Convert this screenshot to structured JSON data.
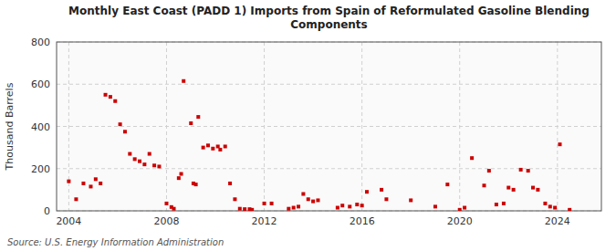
{
  "chart_data": {
    "type": "scatter",
    "title": "Monthly East Coast (PADD 1) Imports from Spain of Reformulated Gasoline Blending\nComponents",
    "ylabel": "Thousand Barrels",
    "source": "Source: U.S. Energy Information Administration",
    "xlim": [
      2003.5,
      2025.8
    ],
    "ylim": [
      0,
      800
    ],
    "xticks": [
      2004,
      2008,
      2012,
      2016,
      2020,
      2024
    ],
    "yticks": [
      0,
      200,
      400,
      600,
      800
    ],
    "color": "#cc0000",
    "marker": "square",
    "grid": true,
    "x": [
      2004.0,
      2004.3,
      2004.6,
      2004.9,
      2005.1,
      2005.3,
      2005.5,
      2005.7,
      2005.9,
      2006.1,
      2006.3,
      2006.5,
      2006.7,
      2006.9,
      2007.1,
      2007.3,
      2007.5,
      2007.7,
      2008.0,
      2008.2,
      2008.3,
      2008.5,
      2008.6,
      2008.7,
      2009.0,
      2009.1,
      2009.2,
      2009.3,
      2009.5,
      2009.7,
      2009.9,
      2010.1,
      2010.2,
      2010.4,
      2010.6,
      2010.8,
      2011.0,
      2011.2,
      2011.4,
      2011.5,
      2012.0,
      2012.3,
      2013.0,
      2013.2,
      2013.4,
      2013.6,
      2013.8,
      2014.0,
      2014.2,
      2015.0,
      2015.2,
      2015.5,
      2015.8,
      2016.0,
      2016.2,
      2016.8,
      2017.0,
      2018.0,
      2019.0,
      2019.5,
      2020.0,
      2020.2,
      2020.5,
      2021.0,
      2021.2,
      2021.5,
      2021.8,
      2022.0,
      2022.2,
      2022.5,
      2022.8,
      2023.0,
      2023.2,
      2023.5,
      2023.7,
      2023.9,
      2024.1,
      2024.5
    ],
    "values": [
      140,
      55,
      130,
      115,
      150,
      130,
      550,
      540,
      520,
      410,
      375,
      270,
      245,
      235,
      220,
      270,
      215,
      210,
      35,
      18,
      10,
      155,
      175,
      615,
      415,
      130,
      125,
      445,
      300,
      310,
      295,
      305,
      290,
      305,
      130,
      55,
      10,
      8,
      8,
      5,
      35,
      35,
      10,
      15,
      20,
      80,
      55,
      45,
      50,
      15,
      25,
      20,
      30,
      25,
      90,
      100,
      55,
      50,
      20,
      125,
      5,
      15,
      250,
      120,
      190,
      30,
      35,
      110,
      100,
      195,
      190,
      110,
      100,
      35,
      20,
      15,
      315,
      5
    ]
  }
}
